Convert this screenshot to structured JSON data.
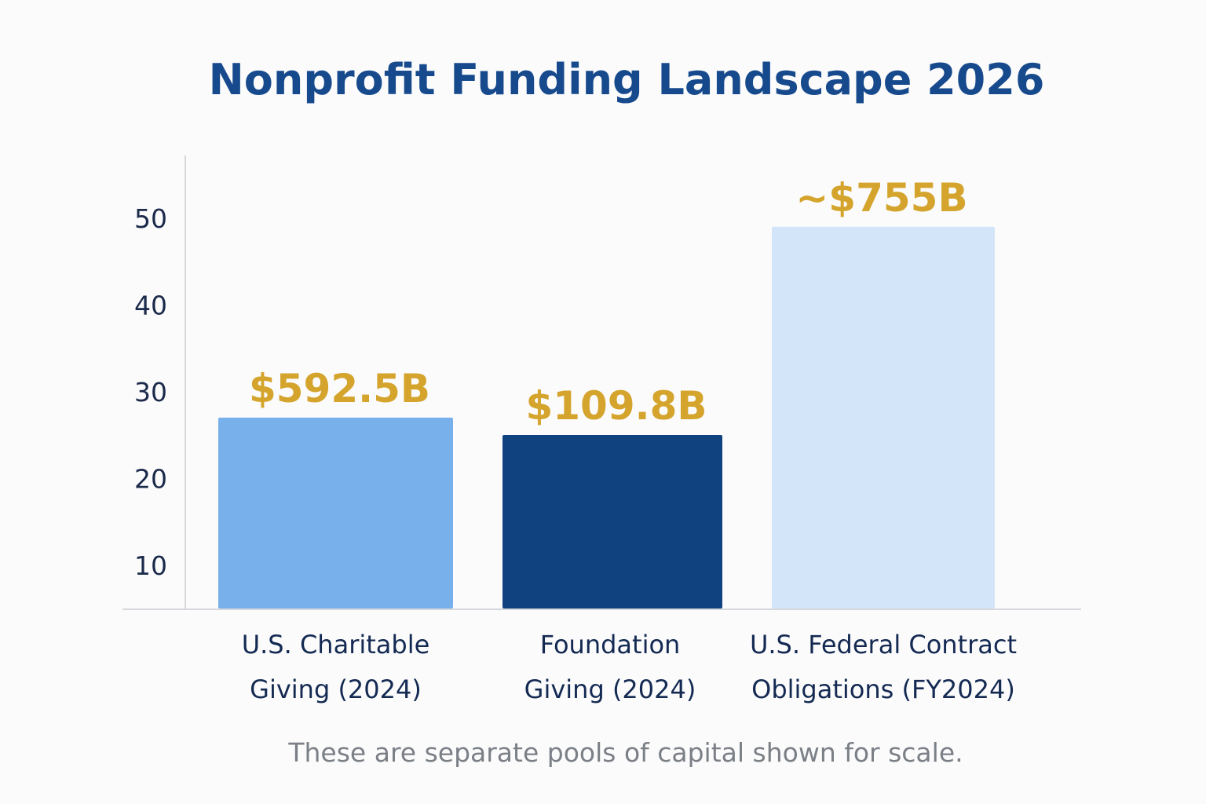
{
  "chart_data": {
    "type": "bar",
    "title": "Nonprofit Funding Landscape 2026",
    "categories": [
      [
        "U.S. Charitable",
        "Giving (2024)"
      ],
      [
        "Foundation",
        "Giving (2024)"
      ],
      [
        "U.S. Federal Contract",
        "Obligations (FY2024)"
      ]
    ],
    "values": [
      27,
      25,
      49
    ],
    "value_labels": [
      "$592.5B",
      "$109.8B",
      "~$755B"
    ],
    "yticks": [
      10,
      20,
      30,
      40,
      50
    ],
    "ylim": [
      5,
      55
    ],
    "grid": false,
    "legend": "none",
    "colors": {
      "bars": [
        "#78b0ec",
        "#10427f",
        "#d3e5f9"
      ],
      "value_label": "#d4a42c",
      "title": "#174a8c",
      "axis": "#d6d8dc"
    },
    "note": "These are separate pools of capital shown for scale."
  }
}
